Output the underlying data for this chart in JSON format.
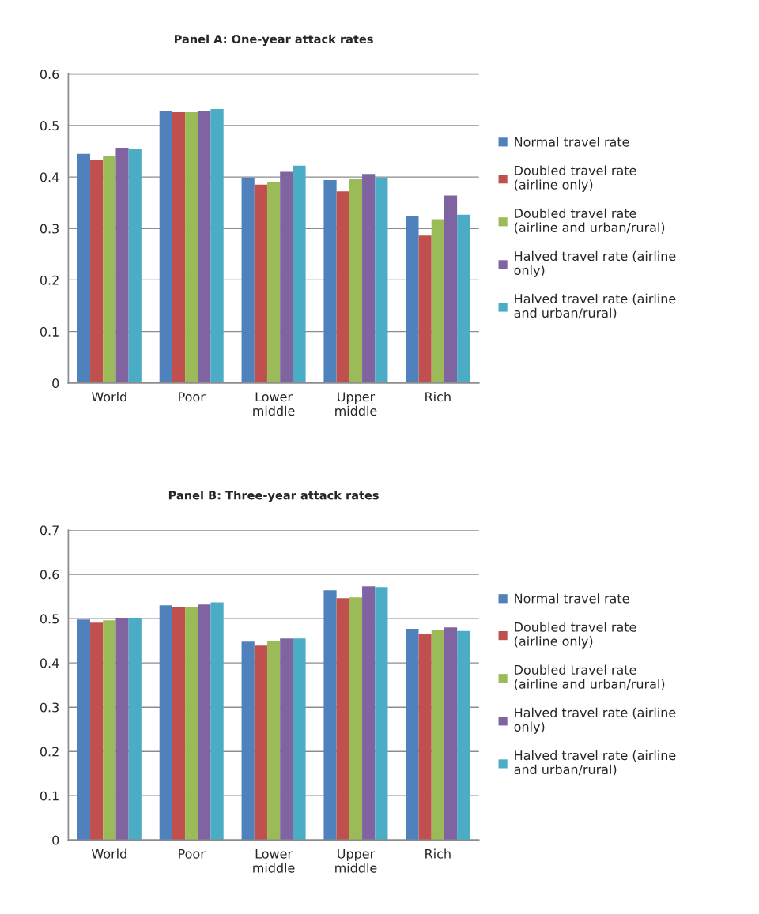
{
  "chart_data": [
    {
      "type": "bar",
      "title": "Panel A: One-year attack rates",
      "categories": [
        "World",
        "Poor",
        "Lower\nmiddle",
        "Upper\nmiddle",
        "Rich"
      ],
      "series": [
        {
          "name": "Normal travel rate",
          "color": "#4f81bd",
          "values": [
            0.445,
            0.528,
            0.399,
            0.394,
            0.325
          ]
        },
        {
          "name": "Doubled travel rate\n(airline only)",
          "color": "#c0504d",
          "values": [
            0.434,
            0.526,
            0.385,
            0.372,
            0.286
          ]
        },
        {
          "name": "Doubled travel rate\n(airline and urban/rural)",
          "color": "#9bbb59",
          "values": [
            0.441,
            0.526,
            0.391,
            0.396,
            0.318
          ]
        },
        {
          "name": "Halved travel rate (airline\nonly)",
          "color": "#8064a2",
          "values": [
            0.457,
            0.528,
            0.41,
            0.406,
            0.364
          ]
        },
        {
          "name": "Halved travel rate (airline\nand urban/rural)",
          "color": "#4bacc6",
          "values": [
            0.455,
            0.532,
            0.422,
            0.399,
            0.327
          ]
        }
      ],
      "ylim": [
        0,
        0.6
      ],
      "yticks": [
        {
          "value": 0,
          "label": "0"
        },
        0.1,
        0.2,
        0.3,
        0.4,
        0.5,
        0.6
      ],
      "grid": "y",
      "legend": "right"
    },
    {
      "type": "bar",
      "title": "Panel B: Three-year attack rates",
      "categories": [
        "World",
        "Poor",
        "Lower\nmiddle",
        "Upper\nmiddle",
        "Rich"
      ],
      "series": [
        {
          "name": "Normal travel rate",
          "color": "#4f81bd",
          "values": [
            0.498,
            0.53,
            0.448,
            0.564,
            0.477
          ]
        },
        {
          "name": "Doubled travel rate\n(airline only)",
          "color": "#c0504d",
          "values": [
            0.491,
            0.527,
            0.439,
            0.546,
            0.466
          ]
        },
        {
          "name": "Doubled travel rate\n(airline and urban/rural)",
          "color": "#9bbb59",
          "values": [
            0.496,
            0.525,
            0.45,
            0.548,
            0.475
          ]
        },
        {
          "name": "Halved travel rate (airline\nonly)",
          "color": "#8064a2",
          "values": [
            0.502,
            0.532,
            0.455,
            0.573,
            0.48
          ]
        },
        {
          "name": "Halved travel rate (airline\nand urban/rural)",
          "color": "#4bacc6",
          "values": [
            0.502,
            0.537,
            0.455,
            0.571,
            0.472
          ]
        }
      ],
      "ylim": [
        0,
        0.7
      ],
      "yticks": [
        {
          "value": 0,
          "label": "0"
        },
        0.1,
        0.2,
        0.3,
        0.4,
        0.5,
        0.6,
        0.7
      ],
      "grid": "y",
      "legend": "right"
    }
  ]
}
